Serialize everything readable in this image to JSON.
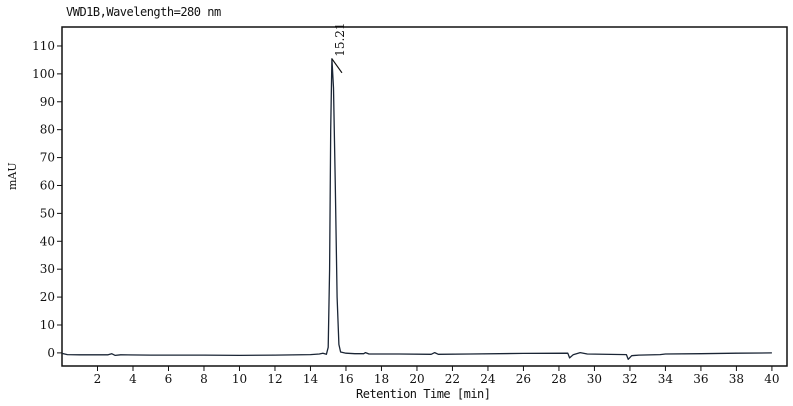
{
  "chart_data": {
    "type": "line",
    "title": "VWD1B,Wavelength=280 nm",
    "xlabel": "Retention Time [min]",
    "ylabel": "mAU",
    "xlim": [
      0,
      40.85
    ],
    "ylim": [
      -4.7,
      116.8
    ],
    "xticks": [
      2,
      4,
      6,
      8,
      10,
      12,
      14,
      16,
      18,
      20,
      22,
      24,
      26,
      28,
      30,
      32,
      34,
      36,
      38,
      40
    ],
    "yticks": [
      0,
      10,
      20,
      30,
      40,
      50,
      60,
      70,
      80,
      90,
      100,
      110
    ],
    "grid": false,
    "line_color": "#1a2535",
    "series": [
      {
        "points": [
          [
            0,
            -0.2
          ],
          [
            0.3,
            -0.6
          ],
          [
            1,
            -0.7
          ],
          [
            2,
            -0.7
          ],
          [
            2.6,
            -0.7
          ],
          [
            2.8,
            -0.3
          ],
          [
            3,
            -0.9
          ],
          [
            3.3,
            -0.7
          ],
          [
            5,
            -0.8
          ],
          [
            8,
            -0.8
          ],
          [
            10,
            -0.9
          ],
          [
            12,
            -0.8
          ],
          [
            14,
            -0.6
          ],
          [
            14.5,
            -0.4
          ],
          [
            14.7,
            -0.1
          ],
          [
            14.9,
            -0.5
          ],
          [
            15.0,
            2
          ],
          [
            15.08,
            30
          ],
          [
            15.14,
            80
          ],
          [
            15.21,
            105.4
          ],
          [
            15.3,
            95
          ],
          [
            15.4,
            60
          ],
          [
            15.5,
            20
          ],
          [
            15.6,
            3
          ],
          [
            15.7,
            0.3
          ],
          [
            16,
            -0.1
          ],
          [
            16.5,
            -0.3
          ],
          [
            17,
            -0.3
          ],
          [
            17.1,
            0.1
          ],
          [
            17.3,
            -0.4
          ],
          [
            19,
            -0.4
          ],
          [
            20.8,
            -0.5
          ],
          [
            21,
            0.1
          ],
          [
            21.2,
            -0.5
          ],
          [
            23,
            -0.4
          ],
          [
            26,
            -0.2
          ],
          [
            28.5,
            -0.1
          ],
          [
            28.6,
            -1.8
          ],
          [
            28.8,
            -0.7
          ],
          [
            29.2,
            0.1
          ],
          [
            29.6,
            -0.4
          ],
          [
            31.8,
            -0.6
          ],
          [
            31.9,
            -2.3
          ],
          [
            32.1,
            -1.0
          ],
          [
            32.5,
            -0.8
          ],
          [
            33.7,
            -0.6
          ],
          [
            34,
            -0.4
          ],
          [
            36,
            -0.3
          ],
          [
            38,
            -0.1
          ],
          [
            40,
            0.0
          ]
        ]
      }
    ],
    "annotations": [
      {
        "label": "15.21",
        "x": 15.21,
        "y": 105.4
      }
    ]
  }
}
